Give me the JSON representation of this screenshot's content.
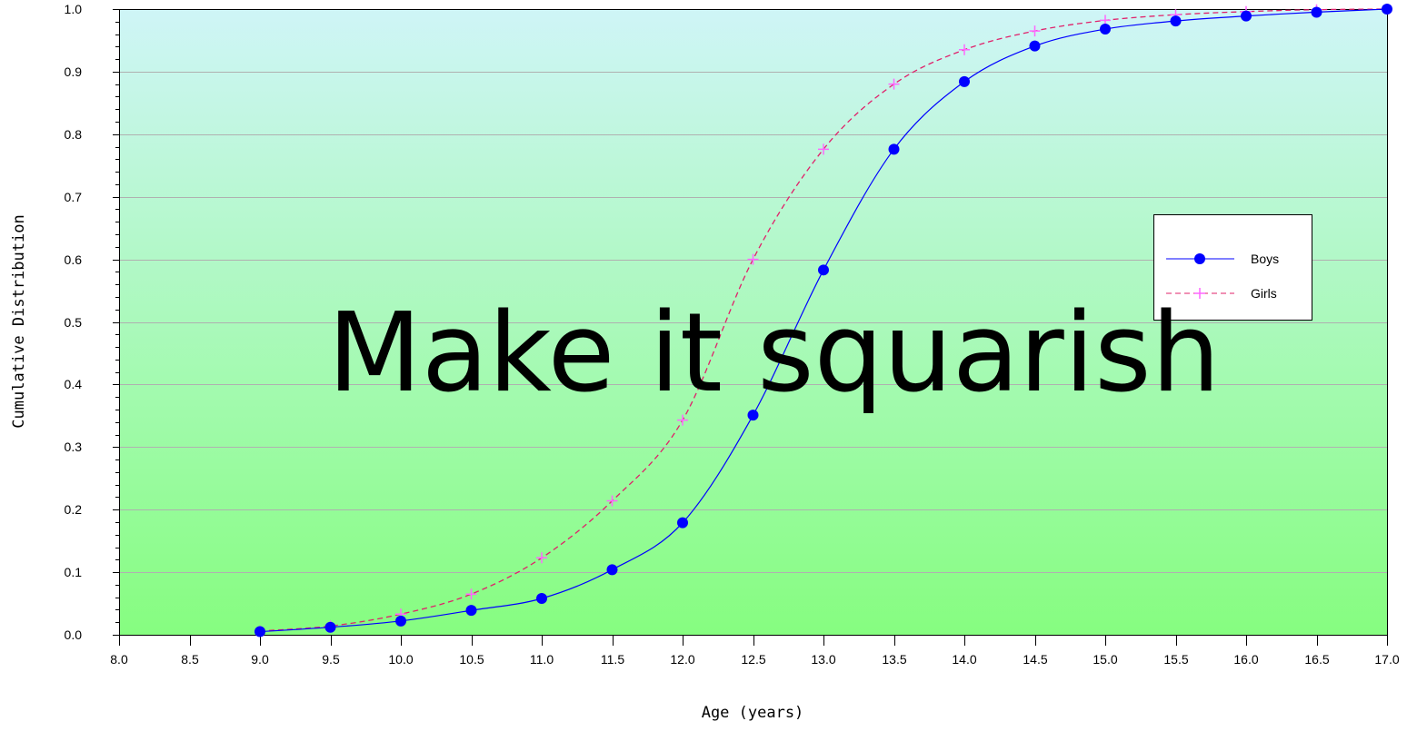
{
  "chart_data": {
    "type": "line",
    "title": "",
    "xlabel": "Age (years)",
    "ylabel": "Cumulative Distribution",
    "xlim": [
      8.0,
      17.0
    ],
    "ylim": [
      0.0,
      1.0
    ],
    "x_ticks": [
      "8.0",
      "8.5",
      "9.0",
      "9.5",
      "10.0",
      "10.5",
      "11.0",
      "11.5",
      "12.0",
      "12.5",
      "13.0",
      "13.5",
      "14.0",
      "14.5",
      "15.0",
      "15.5",
      "16.0",
      "16.5",
      "17.0"
    ],
    "y_ticks": [
      "0.0",
      "0.1",
      "0.2",
      "0.3",
      "0.4",
      "0.5",
      "0.6",
      "0.7",
      "0.8",
      "0.9",
      "1.0"
    ],
    "grid": "horizontal",
    "legend_position": "right",
    "x": [
      9.0,
      9.5,
      10.0,
      10.5,
      11.0,
      11.5,
      12.0,
      12.5,
      13.0,
      13.5,
      14.0,
      14.5,
      15.0,
      15.5,
      16.0,
      16.5,
      17.0
    ],
    "series": [
      {
        "name": "Boys",
        "marker": "circle",
        "line": "solid",
        "color": "#0000ff",
        "values": [
          0.005,
          0.012,
          0.022,
          0.039,
          0.058,
          0.104,
          0.179,
          0.351,
          0.583,
          0.776,
          0.884,
          0.941,
          0.968,
          0.981,
          0.989,
          0.995,
          1.0
        ]
      },
      {
        "name": "Girls",
        "marker": "plus",
        "line": "dashed",
        "line_color": "#e0206a",
        "marker_color": "#ff66ff",
        "values": [
          0.006,
          0.014,
          0.033,
          0.065,
          0.123,
          0.214,
          0.343,
          0.6,
          0.776,
          0.88,
          0.935,
          0.965,
          0.982,
          0.991,
          0.996,
          0.999,
          1.0
        ]
      }
    ],
    "background_gradient": [
      "#cff5f7",
      "#86fd80"
    ]
  },
  "overlay": {
    "text": "Make it squarish"
  }
}
